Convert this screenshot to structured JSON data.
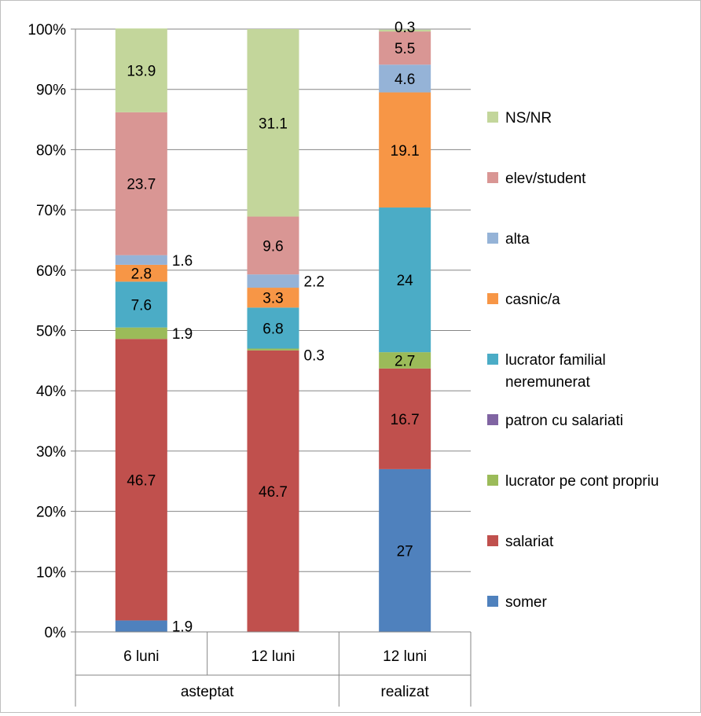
{
  "chart_data": {
    "type": "bar",
    "stacked": true,
    "percent_stacked": true,
    "title": "",
    "xlabel": "",
    "ylabel": "",
    "ylim": [
      0,
      100
    ],
    "yticks": [
      "0%",
      "10%",
      "20%",
      "30%",
      "40%",
      "50%",
      "60%",
      "70%",
      "80%",
      "90%",
      "100%"
    ],
    "grid": true,
    "legend_position": "right",
    "categories": [
      "6 luni",
      "12 luni",
      "12 luni"
    ],
    "groups": [
      {
        "label": "asteptat",
        "span": 2
      },
      {
        "label": "realizat",
        "span": 1
      }
    ],
    "series": [
      {
        "name": "somer",
        "color": "#4f81bd",
        "values": [
          1.9,
          0,
          27
        ],
        "labels": [
          "1.9",
          "",
          "27"
        ]
      },
      {
        "name": "salariat",
        "color": "#c0504d",
        "values": [
          46.7,
          46.7,
          16.7
        ],
        "labels": [
          "46.7",
          "46.7",
          "16.7"
        ]
      },
      {
        "name": "lucrator pe cont propriu",
        "color": "#9bbb59",
        "values": [
          1.9,
          0.3,
          2.7
        ],
        "labels": [
          "1.9",
          "0.3",
          "2.7"
        ]
      },
      {
        "name": "patron cu salariati",
        "color": "#8064a2",
        "values": [
          0,
          0,
          0
        ],
        "labels": [
          "",
          "",
          ""
        ]
      },
      {
        "name": "lucrator familial neremunerat",
        "name_lines": [
          "lucrator familial",
          "neremunerat"
        ],
        "color": "#4bacc6",
        "values": [
          7.6,
          6.8,
          24
        ],
        "labels": [
          "7.6",
          "6.8",
          "24"
        ]
      },
      {
        "name": "casnic/a",
        "color": "#f79646",
        "values": [
          2.8,
          3.3,
          19.1
        ],
        "labels": [
          "2.8",
          "3.3",
          "19.1"
        ]
      },
      {
        "name": "alta",
        "color": "#95b3d7",
        "values": [
          1.6,
          2.2,
          4.6
        ],
        "labels": [
          "1.6",
          "2.2",
          "4.6"
        ]
      },
      {
        "name": "elev/student",
        "color": "#d99694",
        "values": [
          23.7,
          9.6,
          5.5
        ],
        "labels": [
          "23.7",
          "9.6",
          "5.5"
        ]
      },
      {
        "name": "NS/NR",
        "color": "#c3d69b",
        "values": [
          13.9,
          31.1,
          0.3
        ],
        "labels": [
          "13.9",
          "31.1",
          "0.3"
        ]
      }
    ]
  }
}
